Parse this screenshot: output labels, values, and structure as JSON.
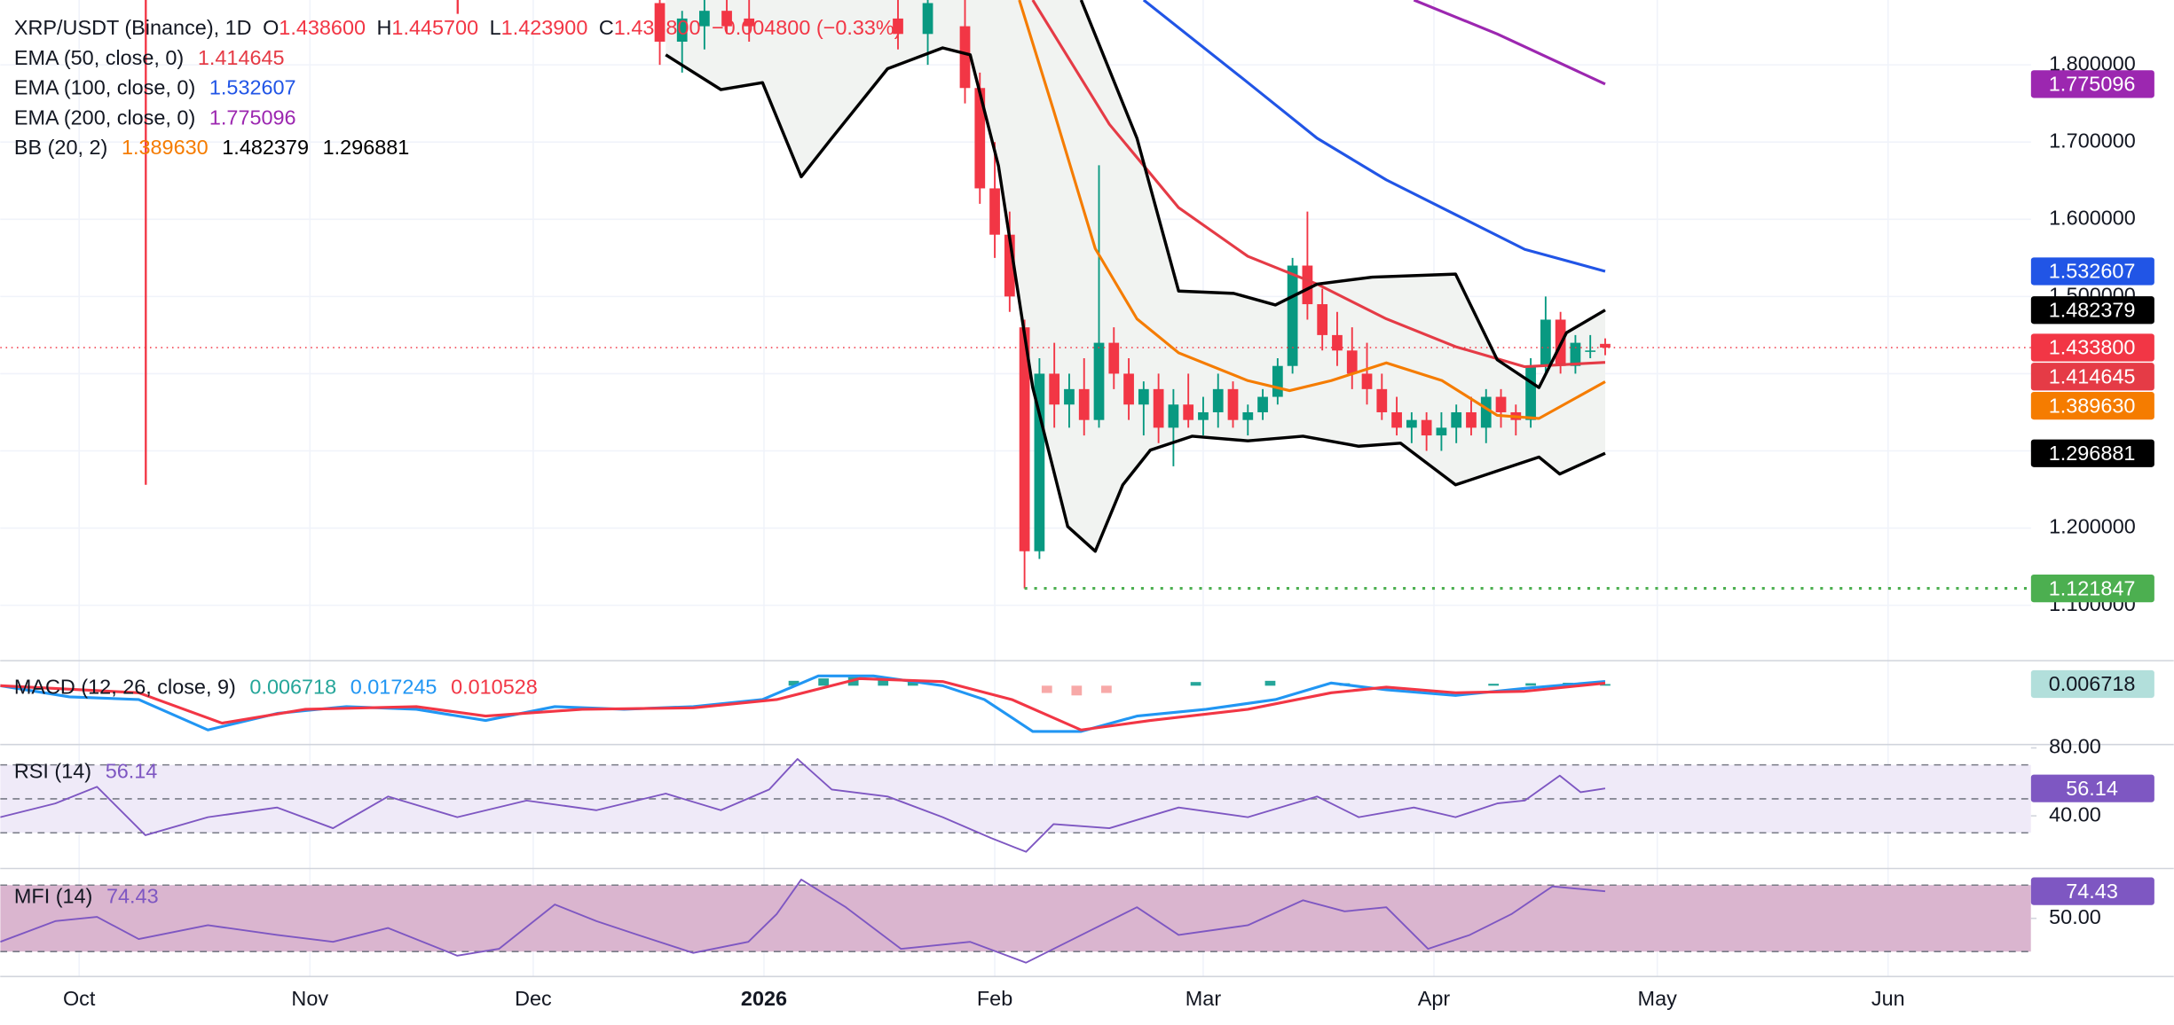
{
  "chart_data": [
    {
      "type": "candlestick",
      "title": "XRP/USDT (Binance), 1D",
      "ohlc_letters": [
        "O",
        "H",
        "L",
        "C"
      ],
      "ohlc_labels": [
        "1.438600",
        "1.445700",
        "1.423900",
        "1.433800"
      ],
      "change": "−0.004800 (−0.33%)",
      "xlim": [
        -10.6,
        262.2
      ],
      "xticks": [
        {
          "value": 0,
          "label": "Oct"
        },
        {
          "value": 31,
          "label": "Nov"
        },
        {
          "value": 61,
          "label": "Dec"
        },
        {
          "value": 92,
          "label": "2026",
          "bold": true
        },
        {
          "value": 123,
          "label": "Feb"
        },
        {
          "value": 151,
          "label": "Mar"
        },
        {
          "value": 182,
          "label": "Apr"
        },
        {
          "value": 212,
          "label": "May"
        },
        {
          "value": 243,
          "label": "Jun"
        }
      ],
      "ylim": [
        1.03,
        1.884
      ],
      "yticks": [
        {
          "value": 1.1,
          "label": "1.100000"
        },
        {
          "value": 1.2,
          "label": "1.200000"
        },
        {
          "value": 1.3,
          "label": "1.300000"
        },
        {
          "value": 1.4,
          "label": "1.400000"
        },
        {
          "value": 1.5,
          "label": "1.500000"
        },
        {
          "value": 1.6,
          "label": "1.600000"
        },
        {
          "value": 1.7,
          "label": "1.700000"
        },
        {
          "value": 1.8,
          "label": "1.800000"
        }
      ],
      "grid": true,
      "up_color": "#089981",
      "down_color": "#f23645",
      "low_line_color": "#4caf50",
      "band_fill": "#f1f3f1",
      "x": [
        78,
        81,
        84,
        87,
        90,
        110,
        114,
        119,
        121,
        123,
        125,
        127,
        129,
        131,
        133,
        135,
        137,
        139,
        141,
        143,
        145,
        147,
        149,
        151,
        153,
        155,
        157,
        159,
        161,
        163,
        165,
        167,
        169,
        171,
        173,
        175,
        177,
        179,
        181,
        183,
        185,
        187,
        189,
        191,
        193,
        195,
        197,
        199,
        201,
        203,
        205
      ],
      "open": [
        1.88,
        1.83,
        1.85,
        1.87,
        1.86,
        1.86,
        1.84,
        1.85,
        1.77,
        1.64,
        1.58,
        1.46,
        1.17,
        1.4,
        1.36,
        1.38,
        1.34,
        1.44,
        1.4,
        1.36,
        1.38,
        1.33,
        1.36,
        1.34,
        1.35,
        1.38,
        1.34,
        1.35,
        1.37,
        1.41,
        1.54,
        1.49,
        1.45,
        1.43,
        1.4,
        1.38,
        1.35,
        1.33,
        1.34,
        1.32,
        1.33,
        1.35,
        1.33,
        1.37,
        1.35,
        1.34,
        1.41,
        1.47,
        1.41,
        1.43,
        1.4386
      ],
      "high": [
        1.92,
        1.87,
        1.9,
        1.9,
        1.89,
        1.92,
        1.9,
        1.9,
        1.79,
        1.7,
        1.61,
        1.47,
        1.42,
        1.44,
        1.4,
        1.42,
        1.67,
        1.46,
        1.42,
        1.39,
        1.4,
        1.38,
        1.4,
        1.37,
        1.4,
        1.39,
        1.36,
        1.38,
        1.42,
        1.55,
        1.61,
        1.51,
        1.48,
        1.46,
        1.44,
        1.4,
        1.37,
        1.35,
        1.35,
        1.35,
        1.36,
        1.37,
        1.38,
        1.38,
        1.36,
        1.42,
        1.5,
        1.48,
        1.45,
        1.45,
        1.4457
      ],
      "low": [
        1.8,
        1.79,
        1.82,
        1.84,
        1.83,
        1.82,
        1.8,
        1.75,
        1.62,
        1.55,
        1.48,
        1.121847,
        1.16,
        1.33,
        1.33,
        1.32,
        1.33,
        1.38,
        1.34,
        1.32,
        1.31,
        1.28,
        1.33,
        1.32,
        1.33,
        1.33,
        1.32,
        1.34,
        1.36,
        1.4,
        1.47,
        1.43,
        1.41,
        1.38,
        1.36,
        1.34,
        1.32,
        1.31,
        1.3,
        1.3,
        1.31,
        1.32,
        1.31,
        1.33,
        1.32,
        1.33,
        1.4,
        1.4,
        1.4,
        1.42,
        1.4239
      ],
      "close": [
        1.83,
        1.86,
        1.87,
        1.85,
        1.85,
        1.84,
        1.88,
        1.77,
        1.64,
        1.58,
        1.5,
        1.17,
        1.4,
        1.36,
        1.38,
        1.34,
        1.44,
        1.4,
        1.36,
        1.38,
        1.33,
        1.36,
        1.34,
        1.35,
        1.38,
        1.34,
        1.35,
        1.37,
        1.41,
        1.54,
        1.49,
        1.45,
        1.43,
        1.4,
        1.38,
        1.35,
        1.33,
        1.34,
        1.32,
        1.33,
        1.35,
        1.33,
        1.37,
        1.35,
        1.34,
        1.41,
        1.47,
        1.41,
        1.44,
        1.43,
        1.4338
      ],
      "series": [
        {
          "name": "EMA (50, close, 0)",
          "color": "#e53b46",
          "x": [
            128.1,
            138.4,
            147.7,
            157,
            166.3,
            175.6,
            184.9,
            194.2,
            205
          ],
          "values": [
            1.884,
            1.723,
            1.615,
            1.552,
            1.516,
            1.471,
            1.435,
            1.409,
            1.414645
          ]
        },
        {
          "name": "EMA (100, close, 0)",
          "color": "#2155e6",
          "x": [
            143,
            157,
            166.3,
            175.6,
            184.9,
            194.2,
            205
          ],
          "values": [
            1.884,
            1.777,
            1.705,
            1.651,
            1.606,
            1.561,
            1.532607
          ]
        },
        {
          "name": "EMA (200, close, 0)",
          "color": "#9c27b0",
          "x": [
            179.3,
            190.5,
            205
          ],
          "values": [
            1.884,
            1.84,
            1.775096
          ]
        },
        {
          "name": "BB (20, 2)",
          "color": "#f57c00",
          "x": [
            126.3,
            130.9,
            136.5,
            142.1,
            147.7,
            157,
            162.6,
            168.2,
            175.6,
            183.1,
            190.5,
            196.1,
            205
          ],
          "values": [
            1.884,
            1.741,
            1.562,
            1.471,
            1.427,
            1.391,
            1.378,
            1.391,
            1.414,
            1.391,
            1.346,
            1.342,
            1.38963
          ],
          "value_labels": [
            null,
            null,
            null,
            null,
            null,
            null,
            null,
            null,
            null,
            null,
            null,
            null,
            "1.389630"
          ]
        },
        {
          "color": "#000000",
          "x": [
            134.6,
            142.1,
            147.7,
            155.1,
            160.7,
            166.3,
            173.7,
            184.9,
            190.5,
            196.1,
            199.8,
            205
          ],
          "values": [
            1.884,
            1.705,
            1.507,
            1.504,
            1.489,
            1.516,
            1.525,
            1.529,
            1.418,
            1.382,
            1.453,
            1.482379
          ]
        },
        {
          "color": "#000000",
          "x": [
            78.8,
            86.2,
            91.8,
            97,
            101.1,
            108.6,
            116,
            119.7,
            123.5,
            128.1,
            132.8,
            136.5,
            140.2,
            143.9,
            149.5,
            157,
            164.4,
            171.9,
            177.5,
            184.9,
            190.5,
            196.1,
            198.9,
            205
          ],
          "values": [
            1.813,
            1.768,
            1.777,
            1.655,
            1.705,
            1.795,
            1.822,
            1.813,
            1.669,
            1.382,
            1.202,
            1.17,
            1.256,
            1.301,
            1.319,
            1.313,
            1.319,
            1.306,
            1.31,
            1.256,
            1.274,
            1.292,
            1.27,
            1.296881
          ]
        }
      ]
    },
    {
      "type": "macd",
      "title": "MACD (12, 26, close, 9)",
      "ylim": [
        -0.239,
        0.097
      ],
      "histogram": {
        "up_color": "#26a69a",
        "down_color": "#f7a9a8",
        "badge_color": "#b2dfdb",
        "x": [
          96,
          100,
          104,
          108,
          112,
          130,
          134,
          138,
          150,
          160,
          170,
          190,
          195,
          200,
          205
        ],
        "values": [
          0.02,
          0.03,
          0.035,
          0.03,
          0.02,
          -0.03,
          -0.04,
          -0.03,
          0.015,
          0.02,
          0.01,
          0.008,
          0.01,
          0.012,
          0.006718
        ]
      },
      "series": [
        {
          "color": "#2196f3",
          "x": [
            -10.6,
            -1.3,
            8,
            17.3,
            26.6,
            35.9,
            45.3,
            54.6,
            63.9,
            73.2,
            82.5,
            91.8,
            99.3,
            106.7,
            116,
            121.6,
            128.1,
            134.6,
            142.1,
            151.4,
            160.7,
            168.2,
            175.6,
            184.9,
            194.2,
            205
          ],
          "values": [
            0,
            -0.046,
            -0.057,
            -0.182,
            -0.114,
            -0.086,
            -0.097,
            -0.143,
            -0.086,
            -0.097,
            -0.086,
            -0.057,
            0.04,
            0.04,
            0,
            -0.057,
            -0.188,
            -0.188,
            -0.125,
            -0.097,
            -0.057,
            0.011,
            -0.017,
            -0.04,
            -0.011,
            0.017245
          ]
        },
        {
          "color": "#f23645",
          "x": [
            -10.6,
            8,
            19.2,
            30.4,
            45.3,
            54.6,
            67.6,
            82.5,
            93.7,
            104.8,
            116,
            125.3,
            134.6,
            143.9,
            157,
            168.2,
            175.6,
            184.9,
            194.2,
            205
          ],
          "values": [
            0,
            -0.029,
            -0.154,
            -0.097,
            -0.086,
            -0.125,
            -0.097,
            -0.091,
            -0.057,
            0.029,
            0.017,
            -0.057,
            -0.182,
            -0.143,
            -0.097,
            -0.029,
            -0.006,
            -0.029,
            -0.023,
            0.010528
          ]
        }
      ]
    },
    {
      "type": "line",
      "title": "RSI (14)",
      "ylim": [
        9.8,
        81.6
      ],
      "yticks": [
        {
          "value": 40,
          "label": "40.00"
        },
        {
          "value": 80,
          "label": "80.00"
        }
      ],
      "levels": [
        30,
        50,
        70
      ],
      "band": [
        30,
        70
      ],
      "band_color": "#efeaf8",
      "series": [
        {
          "color": "#7e57c2",
          "x": [
            -10.6,
            -3.2,
            2.4,
            8.9,
            17.3,
            26.6,
            34.1,
            41.5,
            50.8,
            60.1,
            69.5,
            78.8,
            86.2,
            92.7,
            96.5,
            101.1,
            108.6,
            116,
            122.5,
            127.2,
            130.9,
            138.4,
            147.7,
            157,
            166.3,
            171.9,
            179.3,
            184.9,
            190.5,
            194.2,
            198.9,
            201.7,
            205
          ],
          "values": [
            39.2,
            47.3,
            57.1,
            28.6,
            39.2,
            44.9,
            32.7,
            51.4,
            39.2,
            49,
            43.3,
            53.1,
            43.3,
            55.5,
            73.5,
            55.5,
            51.4,
            39.2,
            26.9,
            18.8,
            35.1,
            32.7,
            44.9,
            39.2,
            51.4,
            39.2,
            44.9,
            39.2,
            47.3,
            49,
            63.7,
            53.9,
            56.14
          ]
        }
      ]
    },
    {
      "type": "line",
      "title": "MFI (14)",
      "ylim": [
        -2.5,
        93.75
      ],
      "yticks": [
        {
          "value": 50,
          "label": "50.00"
        }
      ],
      "levels": [
        20,
        80
      ],
      "band": [
        20,
        80
      ],
      "band_color": "#dab5cf",
      "series": [
        {
          "color": "#7e57c2",
          "x": [
            -10.6,
            -3.2,
            2.4,
            8,
            17.3,
            26.6,
            34.1,
            41.5,
            50.8,
            56.4,
            63.9,
            69.5,
            75.1,
            82.5,
            89.9,
            93.7,
            97,
            103,
            110.4,
            119.7,
            127.2,
            132.8,
            142.1,
            147.7,
            157,
            164.4,
            170,
            175.6,
            181.2,
            186.8,
            192.4,
            197.9,
            205
          ],
          "values": [
            28.8,
            47.5,
            51.3,
            31.3,
            43.8,
            35,
            28.8,
            41.3,
            16.3,
            22.5,
            62.5,
            47.5,
            35,
            18.8,
            28.8,
            53.8,
            85,
            60,
            22.5,
            28.8,
            10,
            28.8,
            60,
            35,
            43.8,
            66.3,
            56.3,
            60,
            22.5,
            35,
            53.8,
            78.8,
            74.43
          ]
        }
      ]
    }
  ]
}
